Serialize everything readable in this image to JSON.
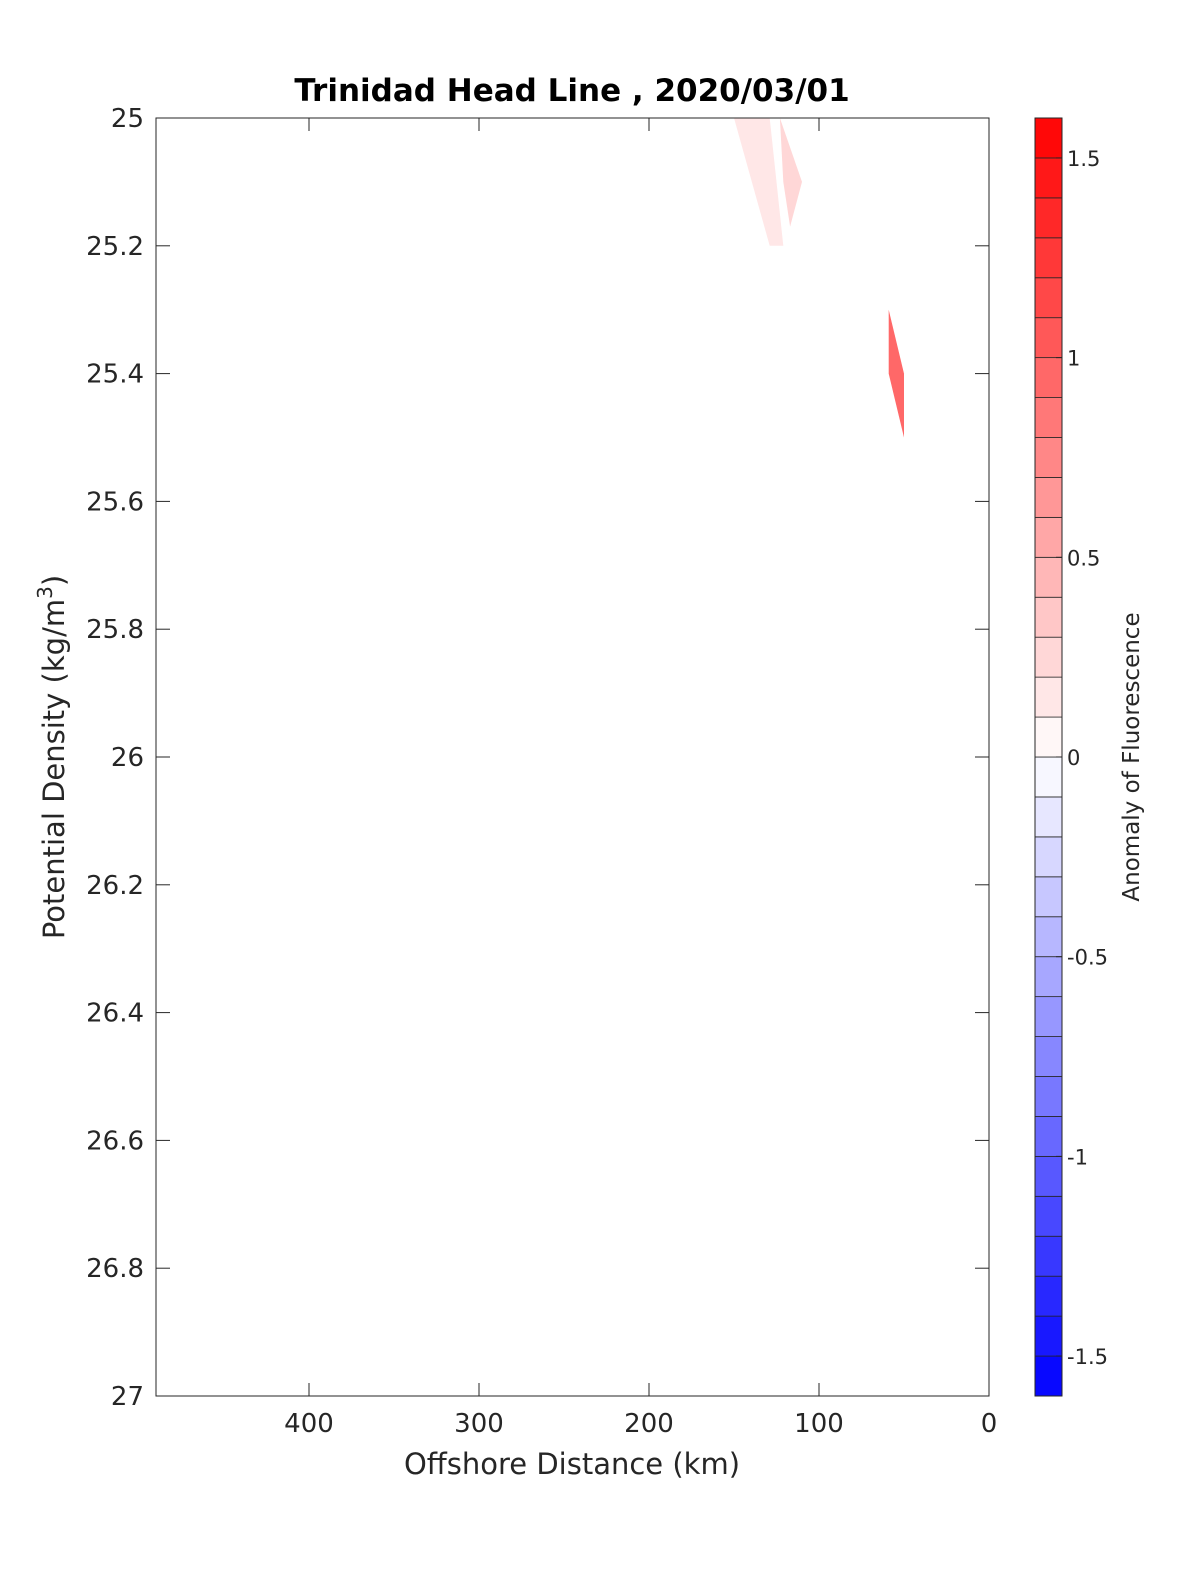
{
  "chart_data": {
    "type": "heatmap",
    "subtype": "filled-contour",
    "title": "Trinidad Head Line , 2020/03/01",
    "xlabel": "Offshore Distance (km)",
    "ylabel": {
      "main": "Potential Density (kg/m",
      "sup": "3",
      "close": ")"
    },
    "x_direction": "reversed",
    "xlim": [
      0,
      490
    ],
    "x_ticks": [
      400,
      300,
      200,
      100,
      0
    ],
    "x_tick_labels": [
      "400",
      "300",
      "200",
      "100",
      "0"
    ],
    "y_direction": "reversed",
    "ylim": [
      25,
      27
    ],
    "y_ticks": [
      25,
      25.2,
      25.4,
      25.6,
      25.8,
      26,
      26.2,
      26.4,
      26.6,
      26.8,
      27
    ],
    "y_tick_labels": [
      "25",
      "25.2",
      "25.4",
      "25.6",
      "25.8",
      "26",
      "26.2",
      "26.4",
      "26.6",
      "26.8",
      "27"
    ],
    "grid": false,
    "colorbar": {
      "label": "Anomaly of Fluorescence",
      "range": [
        -1.6,
        1.6
      ],
      "levels": 32,
      "low_color": "#0000ff",
      "mid_color": "#ffffff",
      "high_color": "#ff0000",
      "ticks": [
        1.5,
        1,
        0.5,
        0,
        -0.5,
        -1,
        -1.5
      ],
      "tick_labels": [
        "1.5",
        "1",
        "0.5",
        "0",
        "-0.5",
        "-1",
        "-1.5"
      ]
    },
    "regions": [
      {
        "value": 0.15,
        "points": [
          [
            150,
            25.0
          ],
          [
            129,
            25.0
          ],
          [
            121,
            25.2
          ],
          [
            129,
            25.2
          ]
        ]
      },
      {
        "value": 0.25,
        "points": [
          [
            123,
            25.0
          ],
          [
            110,
            25.1
          ],
          [
            117,
            25.17
          ],
          [
            121,
            25.1
          ]
        ]
      },
      {
        "value": 0.9,
        "points": [
          [
            59,
            25.3
          ],
          [
            50,
            25.4
          ],
          [
            50,
            25.5
          ],
          [
            59,
            25.4
          ]
        ]
      }
    ]
  }
}
